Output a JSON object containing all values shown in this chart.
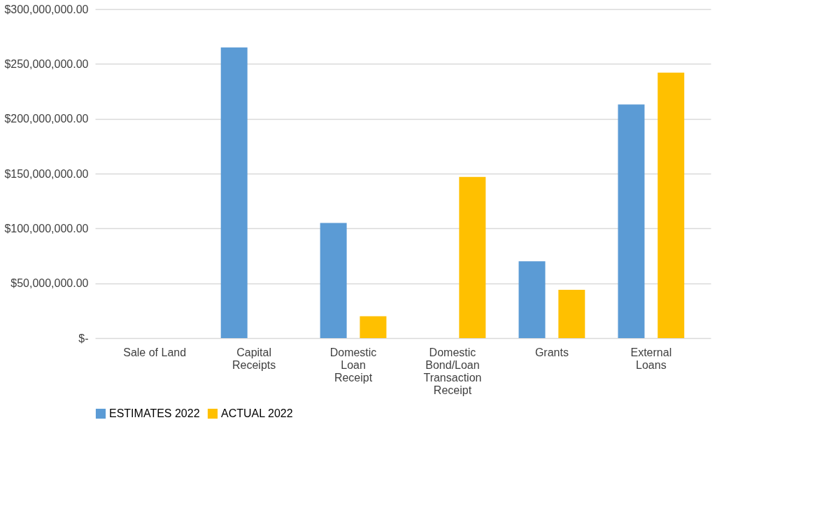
{
  "chart_data": {
    "type": "bar",
    "categories": [
      "Sale of Land",
      "Capital Receipts",
      "Domestic Loan Receipt",
      "Domestic Bond/Loan Transaction Receipt",
      "Grants",
      "External Loans"
    ],
    "series": [
      {
        "name": "ESTIMATES 2022",
        "color": "#5b9bd5",
        "values": [
          0,
          265000000,
          105000000,
          0,
          70000000,
          213000000
        ]
      },
      {
        "name": "ACTUAL 2022",
        "color": "#ffc000",
        "values": [
          0,
          0,
          20000000,
          147000000,
          44000000,
          242000000
        ]
      }
    ],
    "ylim": [
      0,
      300000000
    ],
    "yticks": [
      {
        "value": 0,
        "label": "$-"
      },
      {
        "value": 50000000,
        "label": "$50,000,000.00"
      },
      {
        "value": 100000000,
        "label": "$100,000,000.00"
      },
      {
        "value": 150000000,
        "label": "$150,000,000.00"
      },
      {
        "value": 200000000,
        "label": "$200,000,000.00"
      },
      {
        "value": 250000000,
        "label": "$250,000,000.00"
      },
      {
        "value": 300000000,
        "label": "$300,000,000.00"
      }
    ],
    "grid": "y",
    "legend": "bottom"
  }
}
